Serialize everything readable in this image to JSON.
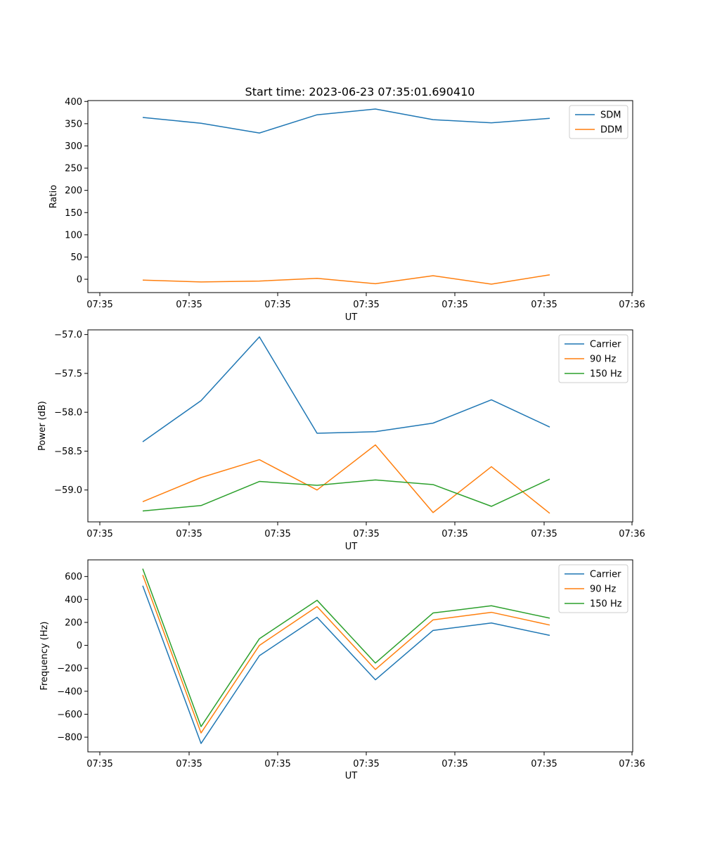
{
  "figure_title": "Start time: 2023-06-23 07:35:01.690410",
  "chart_data": [
    {
      "type": "line",
      "title": "Start time: 2023-06-23 07:35:01.690410",
      "xlabel": "UT",
      "ylabel": "Ratio",
      "x_tick_labels": [
        "07:35",
        "07:35",
        "07:35",
        "07:35",
        "07:35",
        "07:35",
        "07:35",
        "07:36"
      ],
      "y_ticks": [
        0,
        50,
        100,
        150,
        200,
        250,
        300,
        350,
        400
      ],
      "ylim": [
        -30,
        402
      ],
      "grid": false,
      "legend_position": "top-right",
      "series": [
        {
          "name": "SDM",
          "color": "#1f77b4",
          "values": [
            364,
            351,
            329,
            370,
            383,
            359,
            352,
            362
          ]
        },
        {
          "name": "DDM",
          "color": "#ff7f0e",
          "values": [
            -2,
            -6,
            -4,
            2,
            -10,
            8,
            -11,
            10
          ]
        }
      ]
    },
    {
      "type": "line",
      "title": "",
      "xlabel": "UT",
      "ylabel": "Power (dB)",
      "x_tick_labels": [
        "07:35",
        "07:35",
        "07:35",
        "07:35",
        "07:35",
        "07:35",
        "07:35",
        "07:36"
      ],
      "y_ticks": [
        -57.0,
        -57.5,
        -58.0,
        -58.5,
        -59.0
      ],
      "ylim": [
        -59.41,
        -56.94
      ],
      "grid": false,
      "legend_position": "top-right",
      "series": [
        {
          "name": "Carrier",
          "color": "#1f77b4",
          "values": [
            -58.38,
            -57.85,
            -57.03,
            -58.27,
            -58.25,
            -58.14,
            -57.84,
            -58.19
          ]
        },
        {
          "name": "90 Hz",
          "color": "#ff7f0e",
          "values": [
            -59.15,
            -58.84,
            -58.61,
            -59.0,
            -58.42,
            -59.29,
            -58.7,
            -59.3
          ]
        },
        {
          "name": "150 Hz",
          "color": "#2ca02c",
          "values": [
            -59.27,
            -59.2,
            -58.89,
            -58.94,
            -58.87,
            -58.93,
            -59.21,
            -58.86
          ]
        }
      ]
    },
    {
      "type": "line",
      "title": "",
      "xlabel": "UT",
      "ylabel": "Frequency (Hz)",
      "x_tick_labels": [
        "07:35",
        "07:35",
        "07:35",
        "07:35",
        "07:35",
        "07:35",
        "07:35",
        "07:36"
      ],
      "y_ticks": [
        600,
        400,
        200,
        0,
        -200,
        -400,
        -600,
        -800
      ],
      "ylim": [
        -928,
        745
      ],
      "grid": false,
      "legend_position": "top-right",
      "series": [
        {
          "name": "Carrier",
          "color": "#1f77b4",
          "values": [
            520,
            -855,
            -90,
            245,
            -300,
            130,
            195,
            87
          ]
        },
        {
          "name": "90 Hz",
          "color": "#ff7f0e",
          "values": [
            613,
            -763,
            0,
            338,
            -210,
            222,
            288,
            177
          ]
        },
        {
          "name": "150 Hz",
          "color": "#2ca02c",
          "values": [
            668,
            -708,
            58,
            393,
            -154,
            282,
            345,
            237
          ]
        }
      ]
    }
  ]
}
